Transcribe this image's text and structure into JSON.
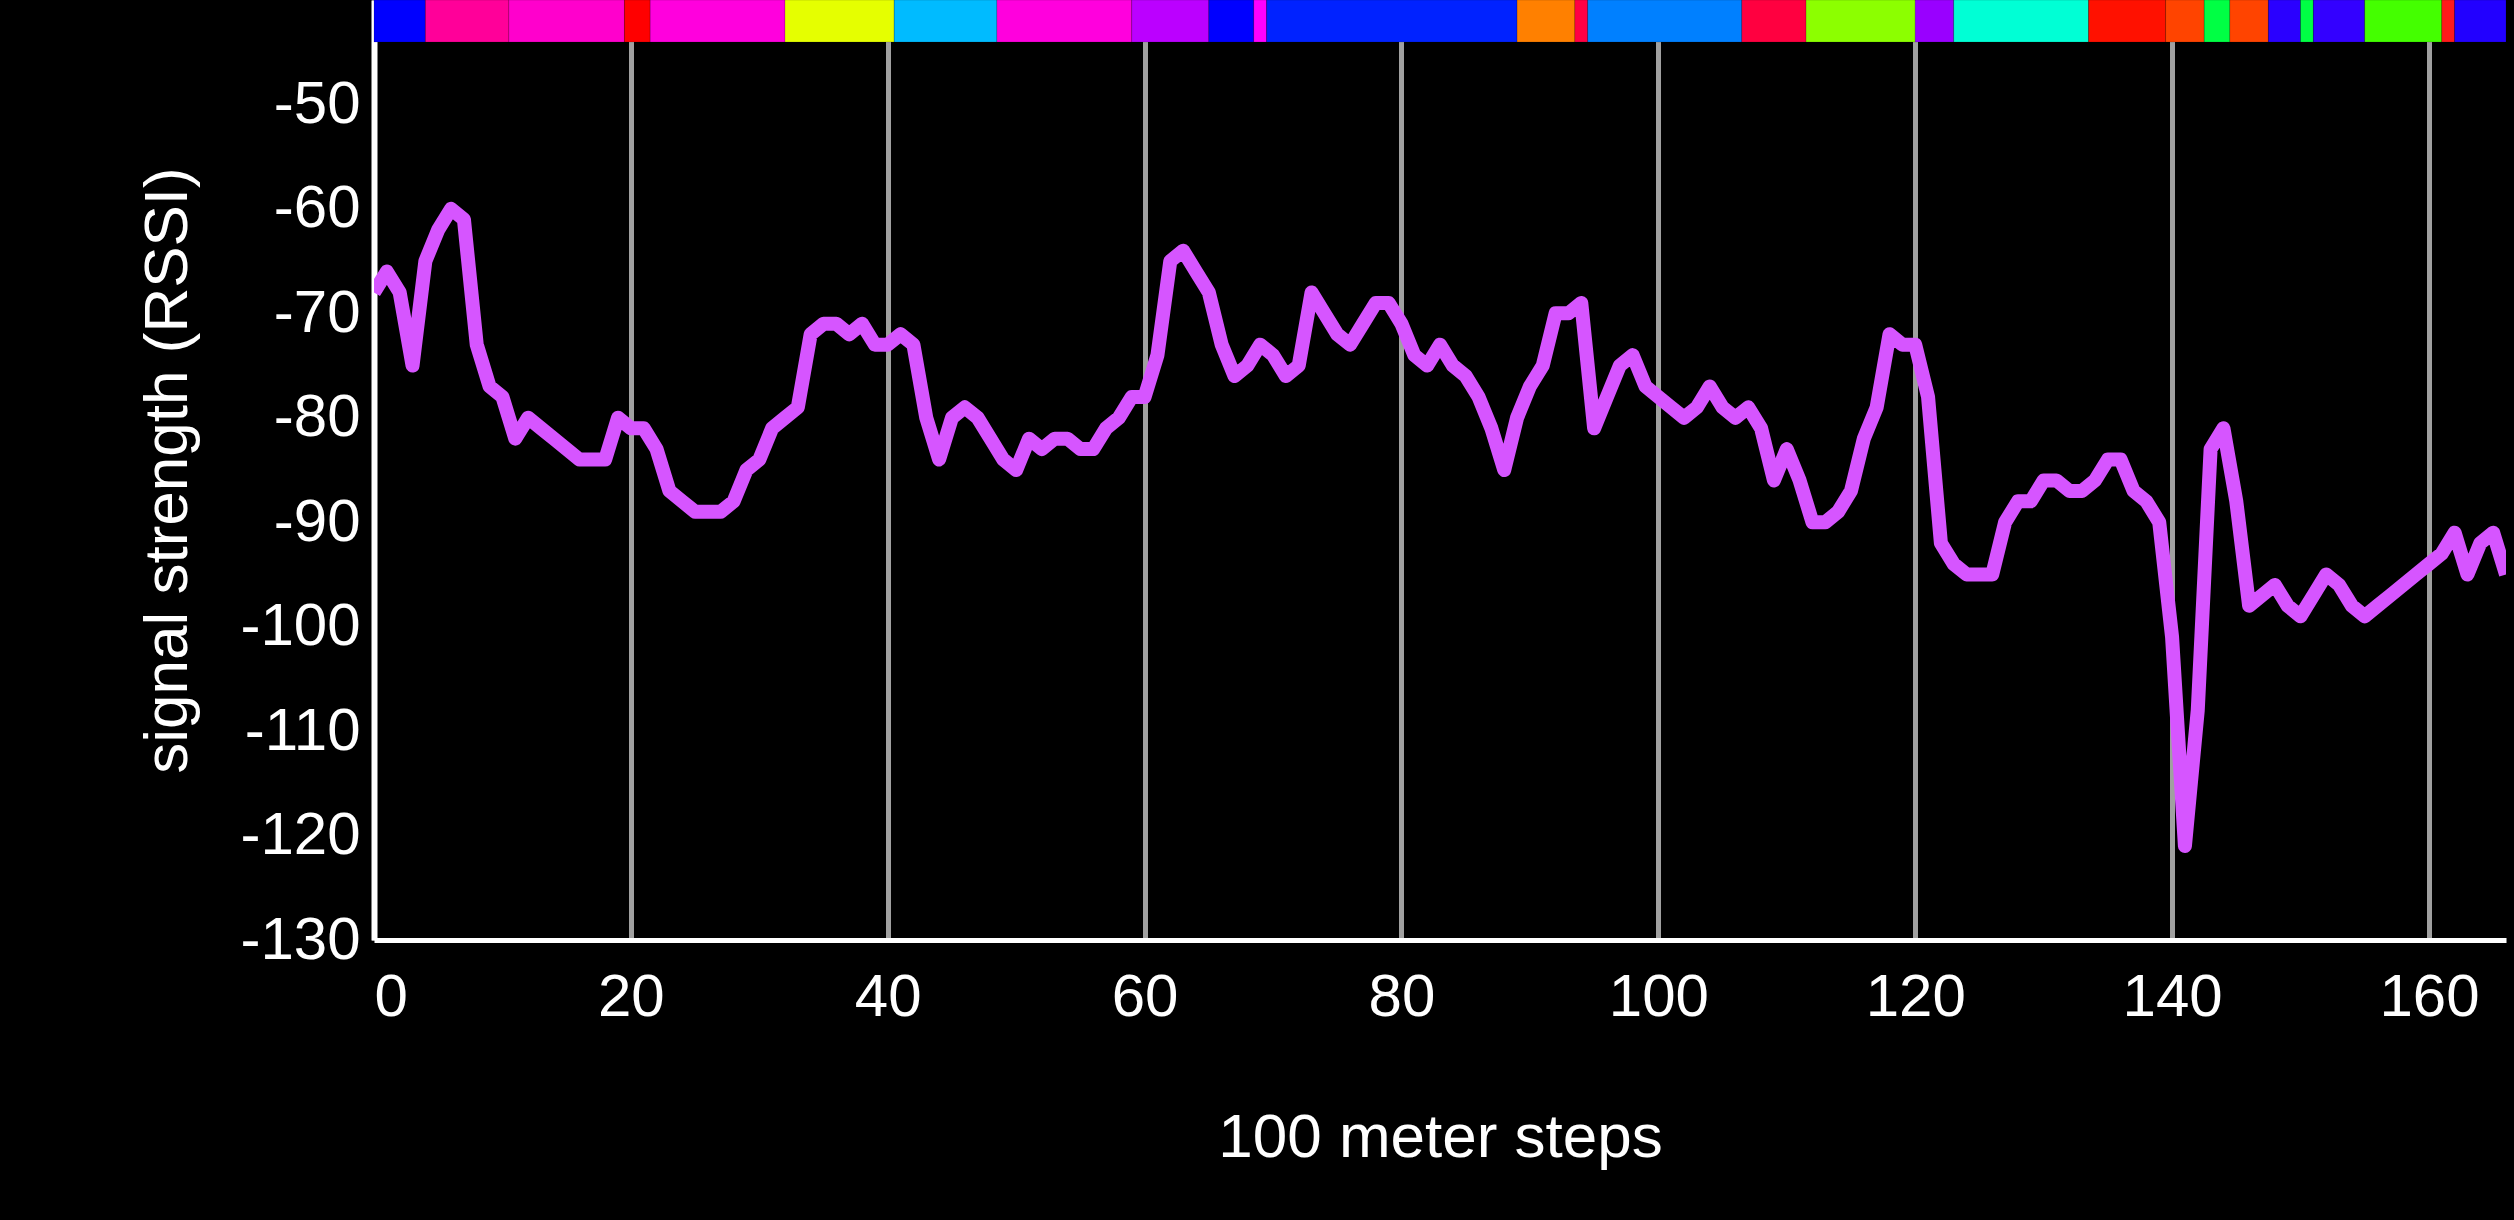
{
  "chart_data": {
    "type": "line",
    "xlabel": "100 meter steps",
    "ylabel": "signal strength (RSSI)",
    "x": [
      0,
      1,
      2,
      3,
      4,
      5,
      6,
      7,
      8,
      9,
      10,
      11,
      12,
      13,
      14,
      15,
      16,
      17,
      18,
      19,
      20,
      21,
      22,
      23,
      24,
      25,
      26,
      27,
      28,
      29,
      30,
      31,
      32,
      33,
      34,
      35,
      36,
      37,
      38,
      39,
      40,
      41,
      42,
      43,
      44,
      45,
      46,
      47,
      48,
      49,
      50,
      51,
      52,
      53,
      54,
      55,
      56,
      57,
      58,
      59,
      60,
      61,
      62,
      63,
      64,
      65,
      66,
      67,
      68,
      69,
      70,
      71,
      72,
      73,
      74,
      75,
      76,
      77,
      78,
      79,
      80,
      81,
      82,
      83,
      84,
      85,
      86,
      87,
      88,
      89,
      90,
      91,
      92,
      93,
      94,
      95,
      96,
      97,
      98,
      99,
      100,
      101,
      102,
      103,
      104,
      105,
      106,
      107,
      108,
      109,
      110,
      111,
      112,
      113,
      114,
      115,
      116,
      117,
      118,
      119,
      120,
      121,
      122,
      123,
      124,
      125,
      126,
      127,
      128,
      129,
      130,
      131,
      132,
      133,
      134,
      135,
      136,
      137,
      138,
      139,
      140,
      141,
      142,
      143,
      144,
      145,
      146,
      147,
      148,
      149,
      150,
      151,
      152,
      153,
      154,
      155,
      156,
      157,
      158,
      159,
      160,
      161,
      162,
      163,
      164,
      165,
      166
    ],
    "series": [
      {
        "color": "#d655ff",
        "values": [
          -68,
          -66,
          -68,
          -75,
          -65,
          -62,
          -60,
          -61,
          -73,
          -77,
          -78,
          -82,
          -80,
          -81,
          -82,
          -83,
          -84,
          -84,
          -84,
          -80,
          -81,
          -81,
          -83,
          -87,
          -88,
          -89,
          -89,
          -89,
          -88,
          -85,
          -84,
          -81,
          -80,
          -79,
          -72,
          -71,
          -71,
          -72,
          -71,
          -73,
          -73,
          -72,
          -73,
          -80,
          -84,
          -80,
          -79,
          -80,
          -82,
          -84,
          -85,
          -82,
          -83,
          -82,
          -82,
          -83,
          -83,
          -81,
          -80,
          -78,
          -78,
          -74,
          -65,
          -64,
          -66,
          -68,
          -73,
          -76,
          -75,
          -73,
          -74,
          -76,
          -75,
          -68,
          -70,
          -72,
          -73,
          -71,
          -69,
          -69,
          -71,
          -74,
          -75,
          -73,
          -75,
          -76,
          -78,
          -81,
          -85,
          -80,
          -77,
          -75,
          -70,
          -70,
          -69,
          -81,
          -78,
          -75,
          -74,
          -77,
          -78,
          -79,
          -80,
          -79,
          -77,
          -79,
          -80,
          -79,
          -81,
          -86,
          -83,
          -86,
          -90,
          -90,
          -89,
          -87,
          -82,
          -79,
          -72,
          -73,
          -73,
          -78,
          -92,
          -94,
          -95,
          -95,
          -95,
          -90,
          -88,
          -88,
          -86,
          -86,
          -87,
          -87,
          -86,
          -84,
          -84,
          -87,
          -88,
          -90,
          -101,
          -121,
          -108,
          -83,
          -81,
          -88,
          -98,
          -97,
          -96,
          -98,
          -99,
          -97,
          -95,
          -96,
          -98,
          -99,
          -98,
          -97,
          -96,
          -95,
          -94,
          -93,
          -91,
          -95,
          -92,
          -91,
          -95
        ]
      }
    ],
    "xlim": [
      0,
      166
    ],
    "ylim": [
      -130,
      -40
    ],
    "xticks": [
      0,
      20,
      40,
      60,
      80,
      100,
      120,
      140,
      160
    ],
    "yticks": [
      -130,
      -120,
      -110,
      -100,
      -90,
      -80,
      -70,
      -60,
      -50
    ],
    "grid": "x",
    "line_style": "solid",
    "bands": [
      {
        "axis": "x",
        "from": 0,
        "to": 4,
        "color": "#0000ff"
      },
      {
        "axis": "x",
        "from": 4,
        "to": 10.5,
        "color": "#ff0099"
      },
      {
        "axis": "x",
        "from": 10.5,
        "to": 19.5,
        "color": "#ff00cc"
      },
      {
        "axis": "x",
        "from": 19.5,
        "to": 21.5,
        "color": "#ff0000"
      },
      {
        "axis": "x",
        "from": 21.5,
        "to": 32,
        "color": "#ff00dd"
      },
      {
        "axis": "x",
        "from": 32,
        "to": 40.5,
        "color": "#e5ff00"
      },
      {
        "axis": "x",
        "from": 40.5,
        "to": 48.5,
        "color": "#00bbff"
      },
      {
        "axis": "x",
        "from": 48.5,
        "to": 59,
        "color": "#ff00dd"
      },
      {
        "axis": "x",
        "from": 59,
        "to": 65,
        "color": "#bb00ff"
      },
      {
        "axis": "x",
        "from": 65,
        "to": 68.5,
        "color": "#0000ff"
      },
      {
        "axis": "x",
        "from": 68.5,
        "to": 69.5,
        "color": "#ff00ff"
      },
      {
        "axis": "x",
        "from": 69.5,
        "to": 89,
        "color": "#0022ff"
      },
      {
        "axis": "x",
        "from": 89,
        "to": 93.5,
        "color": "#ff8000"
      },
      {
        "axis": "x",
        "from": 93.5,
        "to": 94.5,
        "color": "#ff0044"
      },
      {
        "axis": "x",
        "from": 94.5,
        "to": 106.5,
        "color": "#0080ff"
      },
      {
        "axis": "x",
        "from": 106.5,
        "to": 111.5,
        "color": "#ff0040"
      },
      {
        "axis": "x",
        "from": 111.5,
        "to": 120,
        "color": "#8cff00"
      },
      {
        "axis": "x",
        "from": 120,
        "to": 123,
        "color": "#9900ff"
      },
      {
        "axis": "x",
        "from": 123,
        "to": 133.5,
        "color": "#00ffd5"
      },
      {
        "axis": "x",
        "from": 133.5,
        "to": 139.5,
        "color": "#ff1100"
      },
      {
        "axis": "x",
        "from": 139.5,
        "to": 142.5,
        "color": "#ff4400"
      },
      {
        "axis": "x",
        "from": 142.5,
        "to": 144.5,
        "color": "#00ff44"
      },
      {
        "axis": "x",
        "from": 144.5,
        "to": 147.5,
        "color": "#ff4400"
      },
      {
        "axis": "x",
        "from": 147.5,
        "to": 150,
        "color": "#2a00ff"
      },
      {
        "axis": "x",
        "from": 150,
        "to": 151,
        "color": "#00ff44"
      },
      {
        "axis": "x",
        "from": 151,
        "to": 155,
        "color": "#3300ff"
      },
      {
        "axis": "x",
        "from": 155,
        "to": 161,
        "color": "#44ff00"
      },
      {
        "axis": "x",
        "from": 161,
        "to": 162,
        "color": "#ff1a1a"
      },
      {
        "axis": "x",
        "from": 162,
        "to": 166,
        "color": "#2200ff"
      }
    ]
  }
}
